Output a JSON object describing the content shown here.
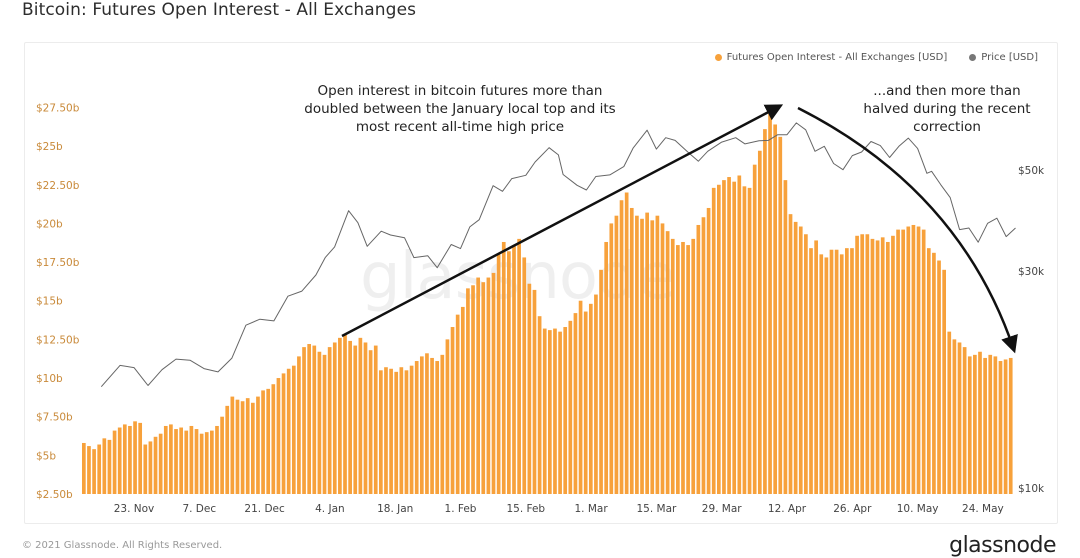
{
  "title": "Bitcoin: Futures Open Interest - All Exchanges",
  "watermark": "glassnode",
  "footer": {
    "copyright": "© 2021 Glassnode. All Rights Reserved.",
    "logo": "glassnode"
  },
  "colors": {
    "bar": "#f7a13b",
    "bar_light": "#fbc47e",
    "price_line": "#666666",
    "arrow": "#111111",
    "axis_text": "#c98a3a",
    "right_axis_text": "#444444"
  },
  "annotations": {
    "left": "Open interest in bitcoin futures more than doubled between the January local top and its most recent all-time high price",
    "right": "...and then more than halved during the recent correction"
  },
  "chart_data": {
    "type": "bar",
    "title": "Bitcoin: Futures Open Interest - All Exchanges",
    "legend": {
      "placement": "top-right",
      "entries": [
        {
          "name": "Futures Open Interest - All Exchanges [USD]",
          "color": "#f7a13b",
          "marker": "dot"
        },
        {
          "name": "Price [USD]",
          "color": "#777777",
          "marker": "dot"
        }
      ]
    },
    "x_tick_labels": [
      "23. Nov",
      "7. Dec",
      "21. Dec",
      "4. Jan",
      "18. Jan",
      "1. Feb",
      "15. Feb",
      "1. Mar",
      "15. Mar",
      "29. Mar",
      "12. Apr",
      "26. Apr",
      "10. May",
      "24. May"
    ],
    "y_left": {
      "ticks": [
        "$2.50b",
        "$5b",
        "$7.50b",
        "$10b",
        "$12.50b",
        "$15b",
        "$17.50b",
        "$20b",
        "$22.50b",
        "$25b",
        "$27.50b"
      ],
      "range": [
        2.5,
        28.5
      ],
      "unit": "billion USD"
    },
    "y_right": {
      "ticks": [
        "$10k",
        "$30k",
        "$50k"
      ],
      "scale": "log",
      "range": [
        10000,
        75000
      ],
      "unit": "USD"
    },
    "grid": false,
    "series": [
      {
        "name": "Futures Open Interest - All Exchanges [USD]",
        "kind": "bar",
        "values": [
          5.8,
          5.6,
          5.4,
          5.7,
          6.1,
          6.0,
          6.6,
          6.8,
          7.0,
          6.9,
          7.2,
          7.1,
          5.7,
          5.9,
          6.2,
          6.4,
          6.9,
          7.0,
          6.7,
          6.8,
          6.6,
          6.9,
          6.7,
          6.4,
          6.5,
          6.6,
          6.9,
          7.5,
          8.2,
          8.8,
          8.6,
          8.5,
          8.7,
          8.4,
          8.8,
          9.2,
          9.3,
          9.6,
          10.0,
          10.3,
          10.6,
          10.8,
          11.4,
          12.0,
          12.2,
          12.1,
          11.7,
          11.5,
          12.0,
          12.3,
          12.6,
          12.8,
          12.4,
          12.1,
          12.6,
          12.3,
          11.8,
          12.1,
          10.5,
          10.7,
          10.6,
          10.4,
          10.7,
          10.5,
          10.8,
          11.1,
          11.4,
          11.6,
          11.3,
          11.1,
          11.5,
          12.5,
          13.3,
          14.1,
          14.6,
          15.8,
          16.0,
          16.5,
          16.2,
          16.5,
          16.8,
          18.0,
          18.8,
          18.2,
          18.6,
          19.0,
          17.8,
          16.1,
          15.7,
          14.0,
          13.2,
          13.1,
          13.2,
          13.0,
          13.3,
          13.7,
          14.2,
          15.0,
          14.3,
          14.8,
          15.4,
          17.0,
          18.8,
          20.0,
          20.5,
          21.5,
          22.0,
          21.0,
          20.5,
          20.3,
          20.7,
          20.2,
          20.5,
          20.0,
          19.5,
          19.0,
          18.6,
          18.8,
          18.6,
          19.0,
          19.9,
          20.4,
          21.0,
          22.3,
          22.5,
          22.8,
          23.0,
          22.7,
          23.1,
          22.4,
          22.3,
          23.8,
          24.7,
          26.1,
          27.4,
          26.4,
          25.6,
          22.8,
          20.6,
          20.1,
          19.8,
          19.3,
          18.4,
          18.9,
          18.0,
          17.8,
          18.3,
          18.3,
          18.0,
          18.4,
          18.4,
          19.2,
          19.3,
          19.3,
          19.0,
          18.9,
          19.1,
          18.8,
          19.2,
          19.6,
          19.6,
          19.8,
          19.9,
          19.8,
          19.6,
          18.4,
          18.1,
          17.6,
          17.0,
          13.0,
          12.5,
          12.3,
          12.0,
          11.4,
          11.5,
          11.7,
          11.3,
          11.5,
          11.4,
          11.1,
          11.2,
          11.3
        ]
      },
      {
        "name": "Price [USD]",
        "kind": "line",
        "points": [
          [
            "16. Nov",
            16700
          ],
          [
            "20. Nov",
            18600
          ],
          [
            "23. Nov",
            18400
          ],
          [
            "26. Nov",
            16800
          ],
          [
            "29. Nov",
            18200
          ],
          [
            "2. Dec",
            19200
          ],
          [
            "5. Dec",
            19100
          ],
          [
            "8. Dec",
            18300
          ],
          [
            "11. Dec",
            18000
          ],
          [
            "14. Dec",
            19300
          ],
          [
            "17. Dec",
            22800
          ],
          [
            "20. Dec",
            23500
          ],
          [
            "23. Dec",
            23300
          ],
          [
            "26. Dec",
            26400
          ],
          [
            "29. Dec",
            27100
          ],
          [
            "1. Jan",
            29400
          ],
          [
            "3. Jan",
            32100
          ],
          [
            "5. Jan",
            33900
          ],
          [
            "8. Jan",
            40700
          ],
          [
            "10. Jan",
            38300
          ],
          [
            "12. Jan",
            34000
          ],
          [
            "15. Jan",
            36700
          ],
          [
            "17. Jan",
            36000
          ],
          [
            "20. Jan",
            35500
          ],
          [
            "22. Jan",
            32100
          ],
          [
            "25. Jan",
            32400
          ],
          [
            "27. Jan",
            30500
          ],
          [
            "30. Jan",
            34300
          ],
          [
            "1. Feb",
            33600
          ],
          [
            "3. Feb",
            37500
          ],
          [
            "5. Feb",
            38900
          ],
          [
            "8. Feb",
            46200
          ],
          [
            "10. Feb",
            44900
          ],
          [
            "12. Feb",
            47900
          ],
          [
            "15. Feb",
            48700
          ],
          [
            "17. Feb",
            52100
          ],
          [
            "20. Feb",
            56000
          ],
          [
            "22. Feb",
            54000
          ],
          [
            "23. Feb",
            48900
          ],
          [
            "26. Feb",
            46300
          ],
          [
            "28. Feb",
            45200
          ],
          [
            "2. Mar",
            48400
          ],
          [
            "5. Mar",
            48800
          ],
          [
            "8. Mar",
            50900
          ],
          [
            "10. Mar",
            55900
          ],
          [
            "13. Mar",
            61200
          ],
          [
            "15. Mar",
            55600
          ],
          [
            "17. Mar",
            58900
          ],
          [
            "19. Mar",
            58100
          ],
          [
            "22. Mar",
            54500
          ],
          [
            "24. Mar",
            52300
          ],
          [
            "26. Mar",
            55000
          ],
          [
            "29. Mar",
            57600
          ],
          [
            "1. Apr",
            58900
          ],
          [
            "3. Apr",
            57100
          ],
          [
            "6. Apr",
            58000
          ],
          [
            "8. Apr",
            58100
          ],
          [
            "10. Apr",
            59800
          ],
          [
            "12. Apr",
            59800
          ],
          [
            "14. Apr",
            63500
          ],
          [
            "16. Apr",
            61300
          ],
          [
            "18. Apr",
            55000
          ],
          [
            "20. Apr",
            56400
          ],
          [
            "22. Apr",
            51700
          ],
          [
            "24. Apr",
            50100
          ],
          [
            "26. Apr",
            53800
          ],
          [
            "28. Apr",
            54800
          ],
          [
            "30. Apr",
            57800
          ],
          [
            "2. May",
            56600
          ],
          [
            "4. May",
            53300
          ],
          [
            "6. May",
            56400
          ],
          [
            "8. May",
            58800
          ],
          [
            "10. May",
            55800
          ],
          [
            "12. May",
            49200
          ],
          [
            "13. May",
            49700
          ],
          [
            "15. May",
            46400
          ],
          [
            "17. May",
            43500
          ],
          [
            "19. May",
            37000
          ],
          [
            "21. May",
            37300
          ],
          [
            "23. May",
            34700
          ],
          [
            "25. May",
            38200
          ],
          [
            "27. May",
            39200
          ],
          [
            "29. May",
            35700
          ],
          [
            "31. May",
            37300
          ]
        ]
      }
    ]
  }
}
